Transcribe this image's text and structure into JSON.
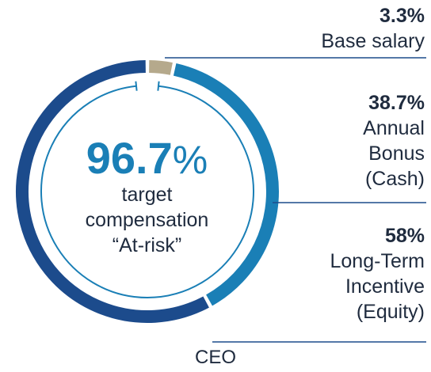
{
  "chart_data": {
    "type": "pie",
    "variant": "donut",
    "title": "CEO",
    "slices": [
      {
        "label": "Base salary",
        "value": 3.3,
        "value_label": "3.3%",
        "color": "#b5a98c"
      },
      {
        "label": "Annual Bonus (Cash)",
        "value": 38.7,
        "value_label": "38.7%",
        "color": "#1a7fb6"
      },
      {
        "label": "Long-Term Incentive (Equity)",
        "value": 58,
        "value_label": "58%",
        "color": "#1c4b8c"
      }
    ],
    "center": {
      "value": "96.7",
      "unit": "%",
      "line1": "target",
      "line2": "compensation",
      "line3": "“At-risk”"
    }
  },
  "labels": {
    "base_pct": "3.3%",
    "base_name": "Base salary",
    "bonus_pct": "38.7%",
    "bonus_line1": "Annual",
    "bonus_line2": "Bonus",
    "bonus_line3": "(Cash)",
    "lti_pct": "58%",
    "lti_line1": "Long-Term",
    "lti_line2": "Incentive",
    "lti_line3": "(Equity)"
  },
  "colors": {
    "leader_line": "#1c4b8c",
    "inner_ring": "#1a7fb6"
  }
}
